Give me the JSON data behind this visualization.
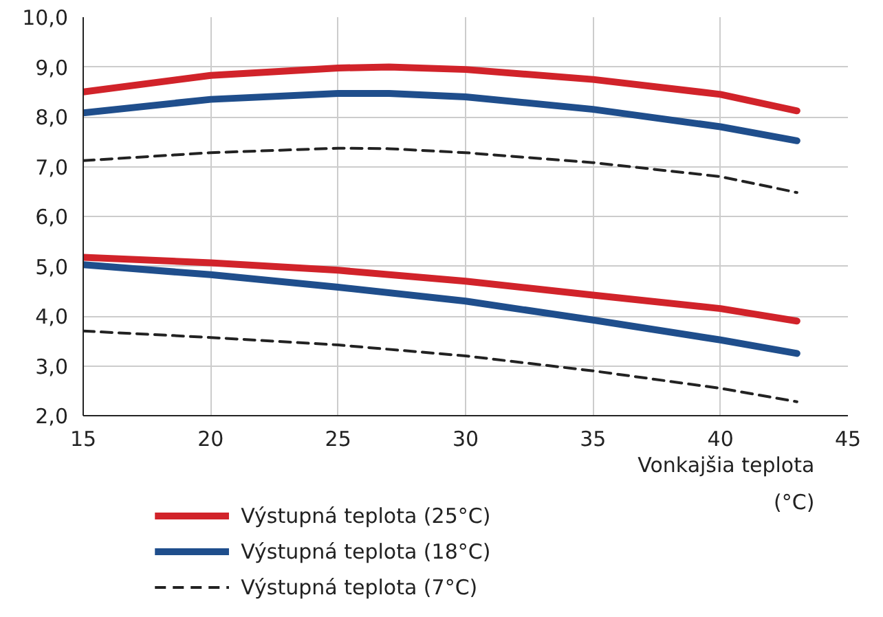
{
  "chart_data": {
    "type": "line",
    "xlabel": "Vonkajšia teplota\n(°C)",
    "xlim": [
      15,
      45
    ],
    "xticks": [
      15,
      20,
      25,
      30,
      35,
      40,
      45
    ],
    "ylim": [
      2,
      10
    ],
    "yticks": [
      {
        "value": 2,
        "label": "2,0"
      },
      {
        "value": 3,
        "label": "3,0"
      },
      {
        "value": 4,
        "label": "4,0"
      },
      {
        "value": 5,
        "label": "5,0"
      },
      {
        "value": 6,
        "label": "6,0"
      },
      {
        "value": 7,
        "label": "7,0"
      },
      {
        "value": 8,
        "label": "8,0"
      },
      {
        "value": 9,
        "label": "9,0"
      },
      {
        "value": 10,
        "label": "10,0"
      }
    ],
    "grid": true,
    "legend": "bottom",
    "marker": "none",
    "series": [
      {
        "name": "Výstupná teplota (25°C)",
        "color": "#d1232a",
        "line_style": "solid",
        "x": [
          15,
          20,
          25,
          27,
          30,
          35,
          40,
          43
        ],
        "values": [
          8.5,
          8.83,
          8.98,
          9.0,
          8.95,
          8.75,
          8.45,
          8.12
        ]
      },
      {
        "name": "Výstupná teplota (18°C)",
        "color": "#1f4e8c",
        "line_style": "solid",
        "x": [
          15,
          20,
          25,
          27,
          30,
          35,
          40,
          43
        ],
        "values": [
          8.08,
          8.35,
          8.47,
          8.47,
          8.4,
          8.15,
          7.8,
          7.52
        ]
      },
      {
        "name": "Výstupná teplota (7°C)",
        "color": "#222222",
        "line_style": "dashed",
        "x": [
          15,
          20,
          25,
          27,
          30,
          35,
          40,
          43
        ],
        "values": [
          7.12,
          7.28,
          7.37,
          7.36,
          7.28,
          7.08,
          6.8,
          6.48
        ]
      },
      {
        "color": "#d1232a",
        "line_style": "solid",
        "x": [
          15,
          20,
          25,
          30,
          35,
          40,
          43
        ],
        "values": [
          5.18,
          5.07,
          4.92,
          4.7,
          4.42,
          4.15,
          3.9
        ]
      },
      {
        "color": "#1f4e8c",
        "line_style": "solid",
        "x": [
          15,
          20,
          25,
          30,
          35,
          40,
          43
        ],
        "values": [
          5.03,
          4.83,
          4.58,
          4.3,
          3.92,
          3.52,
          3.25
        ]
      },
      {
        "color": "#222222",
        "line_style": "dashed",
        "x": [
          15,
          20,
          25,
          30,
          35,
          40,
          43
        ],
        "values": [
          3.7,
          3.57,
          3.42,
          3.2,
          2.9,
          2.55,
          2.28
        ]
      }
    ]
  }
}
